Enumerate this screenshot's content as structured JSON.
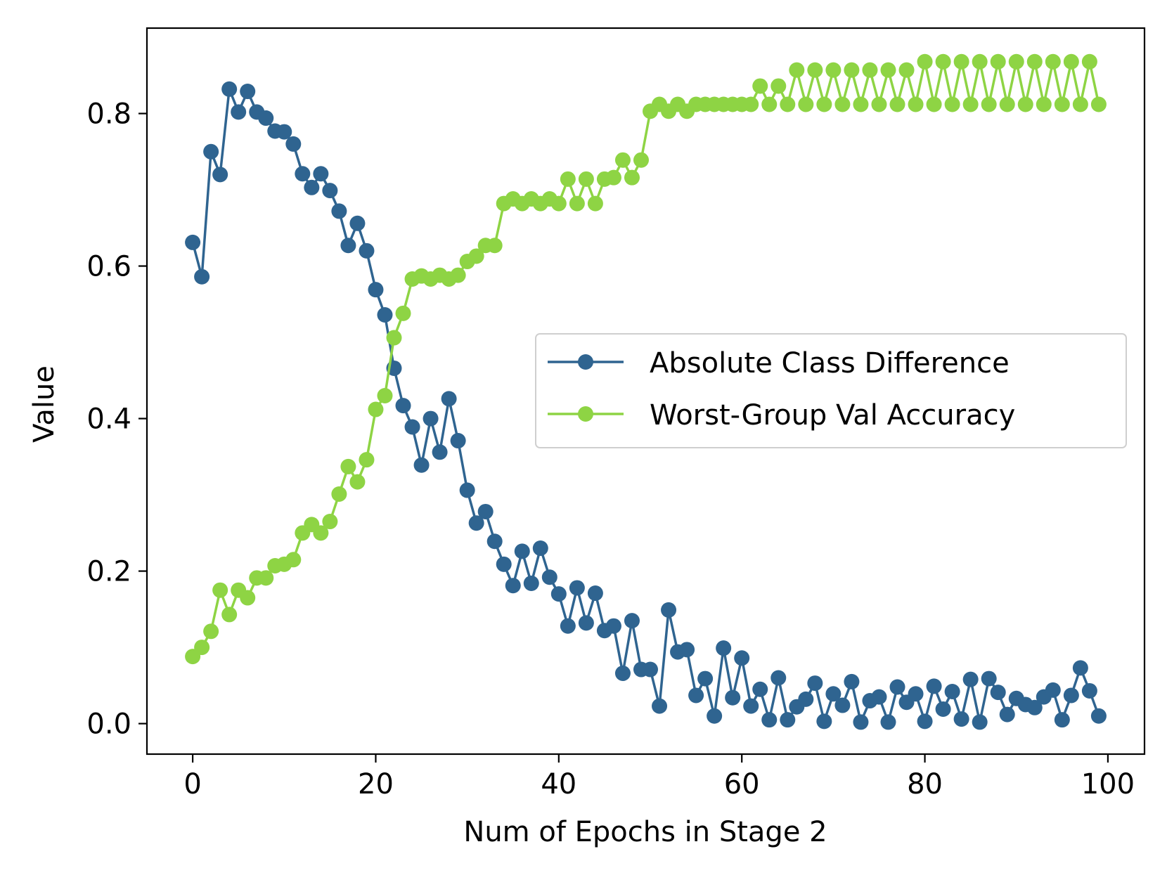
{
  "chart_data": {
    "type": "line",
    "title": "",
    "xlabel": "Num of Epochs in Stage 2",
    "ylabel": "Value",
    "xlim": [
      -5,
      104
    ],
    "ylim": [
      -0.04,
      0.912
    ],
    "xticks": [
      0,
      20,
      40,
      60,
      80,
      100
    ],
    "xtick_labels": [
      "0",
      "20",
      "40",
      "60",
      "80",
      "100"
    ],
    "yticks": [
      0.0,
      0.2,
      0.4,
      0.6,
      0.8
    ],
    "ytick_labels": [
      "0.0",
      "0.2",
      "0.4",
      "0.6",
      "0.8"
    ],
    "grid": false,
    "legend_position": "center-right",
    "x": [
      0,
      1,
      2,
      3,
      4,
      5,
      6,
      7,
      8,
      9,
      10,
      11,
      12,
      13,
      14,
      15,
      16,
      17,
      18,
      19,
      20,
      21,
      22,
      23,
      24,
      25,
      26,
      27,
      28,
      29,
      30,
      31,
      32,
      33,
      34,
      35,
      36,
      37,
      38,
      39,
      40,
      41,
      42,
      43,
      44,
      45,
      46,
      47,
      48,
      49,
      50,
      51,
      52,
      53,
      54,
      55,
      56,
      57,
      58,
      59,
      60,
      61,
      62,
      63,
      64,
      65,
      66,
      67,
      68,
      69,
      70,
      71,
      72,
      73,
      74,
      75,
      76,
      77,
      78,
      79,
      80,
      81,
      82,
      83,
      84,
      85,
      86,
      87,
      88,
      89,
      90,
      91,
      92,
      93,
      94,
      95,
      96,
      97,
      98,
      99
    ],
    "series": [
      {
        "name": "Absolute Class Difference",
        "color": "#2f6490",
        "values": [
          0.631,
          0.586,
          0.75,
          0.72,
          0.832,
          0.802,
          0.829,
          0.802,
          0.794,
          0.777,
          0.776,
          0.76,
          0.721,
          0.703,
          0.721,
          0.699,
          0.672,
          0.627,
          0.656,
          0.62,
          0.569,
          0.536,
          0.466,
          0.417,
          0.389,
          0.339,
          0.4,
          0.356,
          0.426,
          0.371,
          0.306,
          0.263,
          0.278,
          0.239,
          0.209,
          0.181,
          0.226,
          0.184,
          0.23,
          0.192,
          0.17,
          0.128,
          0.178,
          0.132,
          0.171,
          0.122,
          0.128,
          0.066,
          0.135,
          0.071,
          0.071,
          0.023,
          0.149,
          0.094,
          0.097,
          0.037,
          0.059,
          0.01,
          0.099,
          0.034,
          0.086,
          0.023,
          0.045,
          0.005,
          0.06,
          0.005,
          0.022,
          0.032,
          0.053,
          0.003,
          0.039,
          0.024,
          0.055,
          0.002,
          0.03,
          0.035,
          0.002,
          0.048,
          0.028,
          0.039,
          0.003,
          0.049,
          0.019,
          0.042,
          0.006,
          0.058,
          0.002,
          0.059,
          0.041,
          0.012,
          0.033,
          0.025,
          0.021,
          0.035,
          0.044,
          0.005,
          0.037,
          0.073,
          0.043,
          0.01
        ]
      },
      {
        "name": "Worst-Group Val Accuracy",
        "color": "#8ed444",
        "values": [
          0.088,
          0.1,
          0.121,
          0.175,
          0.143,
          0.175,
          0.165,
          0.191,
          0.191,
          0.207,
          0.209,
          0.215,
          0.25,
          0.261,
          0.25,
          0.265,
          0.301,
          0.337,
          0.317,
          0.346,
          0.412,
          0.43,
          0.506,
          0.538,
          0.583,
          0.587,
          0.583,
          0.588,
          0.583,
          0.588,
          0.606,
          0.613,
          0.627,
          0.627,
          0.682,
          0.688,
          0.682,
          0.688,
          0.682,
          0.688,
          0.682,
          0.714,
          0.682,
          0.714,
          0.682,
          0.714,
          0.716,
          0.739,
          0.716,
          0.739,
          0.803,
          0.812,
          0.803,
          0.812,
          0.803,
          0.812,
          0.812,
          0.812,
          0.812,
          0.812,
          0.812,
          0.812,
          0.836,
          0.812,
          0.836,
          0.812,
          0.857,
          0.812,
          0.857,
          0.812,
          0.857,
          0.812,
          0.857,
          0.812,
          0.857,
          0.812,
          0.857,
          0.812,
          0.857,
          0.812,
          0.868,
          0.812,
          0.868,
          0.812,
          0.868,
          0.812,
          0.868,
          0.812,
          0.868,
          0.812,
          0.868,
          0.812,
          0.868,
          0.812,
          0.868,
          0.812,
          0.868,
          0.812,
          0.868,
          0.812
        ]
      }
    ]
  }
}
